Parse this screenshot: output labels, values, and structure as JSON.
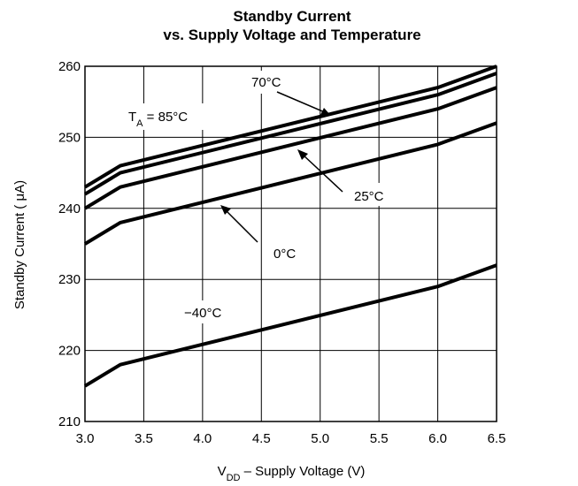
{
  "chart_data": {
    "type": "line",
    "title_line1": "Standby Current",
    "title_line2": "vs. Supply Voltage and Temperature",
    "xlabel": {
      "main": "V",
      "sub": "DD",
      "rest": " – Supply Voltage (V)"
    },
    "ylabel": "Standby Current ( μA)",
    "xlim": [
      3.0,
      6.5
    ],
    "ylim": [
      210,
      260
    ],
    "xticks": [
      3.0,
      3.5,
      4.0,
      4.5,
      5.0,
      5.5,
      6.0,
      6.5
    ],
    "xtick_labels": [
      "3.0",
      "3.5",
      "4.0",
      "4.5",
      "5.0",
      "5.5",
      "6.0",
      "6.5"
    ],
    "yticks": [
      210,
      220,
      230,
      240,
      250,
      260
    ],
    "ytick_labels": [
      "210",
      "220",
      "230",
      "240",
      "250",
      "260"
    ],
    "grid": true,
    "series": [
      {
        "name": "TA = 85°C",
        "x": [
          3.0,
          3.3,
          6.0,
          6.5
        ],
        "y": [
          243,
          246,
          257,
          260
        ]
      },
      {
        "name": "70°C",
        "x": [
          3.0,
          3.3,
          6.0,
          6.5
        ],
        "y": [
          242,
          245,
          256,
          259
        ]
      },
      {
        "name": "25°C",
        "x": [
          3.0,
          3.3,
          6.0,
          6.5
        ],
        "y": [
          240,
          243,
          254,
          257
        ]
      },
      {
        "name": "0°C",
        "x": [
          3.0,
          3.3,
          6.0,
          6.5
        ],
        "y": [
          235,
          238,
          249,
          252
        ]
      },
      {
        "name": "−40°C",
        "x": [
          3.0,
          3.3,
          6.0,
          6.5
        ],
        "y": [
          215,
          218,
          229,
          232
        ]
      }
    ],
    "annotations": {
      "ta85": {
        "main": "T",
        "sub": "A",
        "rest": " = 85°C"
      },
      "t70": "70°C",
      "t25": "25°C",
      "t0": "0°C",
      "tm40": "−40°C"
    }
  }
}
